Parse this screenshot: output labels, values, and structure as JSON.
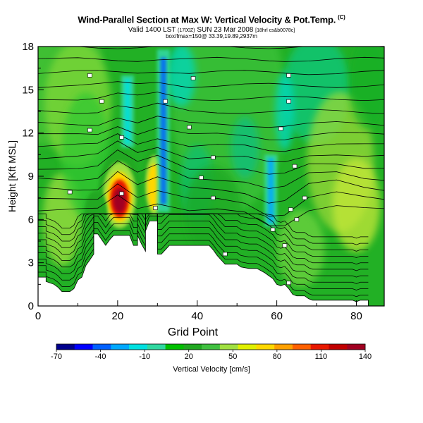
{
  "titles": {
    "main": "Wind-Parallel Section at Max W: Vertical Velocity & Pot.Temp.",
    "copyright": "(C)",
    "valid_prefix": "Valid 1400 LST",
    "valid_utc": "(1700Z)",
    "valid_date": "SUN 23 Mar 2008",
    "valid_suffix": "[18hrl cs&b0078c]",
    "box_info": "box/fmax=150@ 33.39,19.89,2937m"
  },
  "chart_data": {
    "type": "heatmap",
    "title": "Wind-Parallel Section at Max W: Vertical Velocity & Pot.Temp.",
    "xlabel": "Grid Point",
    "ylabel": "Height [Kft MSL]",
    "xlim": [
      0,
      87
    ],
    "ylim": [
      0,
      18
    ],
    "x_ticks": [
      "0",
      "20",
      "40",
      "60",
      "80"
    ],
    "y_ticks": [
      "0",
      "3",
      "6",
      "9",
      "12",
      "15",
      "18"
    ],
    "grid": false,
    "colorbar": {
      "label": "Vertical Velocity [cm/s]",
      "position": "bottom",
      "tick_labels": [
        "-70",
        "-40",
        "-10",
        "20",
        "50",
        "80",
        "110",
        "140"
      ],
      "min": -70,
      "max": 140,
      "colors": [
        "#00008c",
        "#0000ff",
        "#0060ff",
        "#00a8ff",
        "#00e0e0",
        "#30d8a0",
        "#00c000",
        "#20a820",
        "#40c040",
        "#a0e040",
        "#e0f000",
        "#ffd800",
        "#ffa000",
        "#ff6000",
        "#e81800",
        "#c00000",
        "#a00020"
      ]
    },
    "terrain": [
      [
        0,
        2
      ],
      [
        2,
        2
      ],
      [
        2,
        1.7
      ],
      [
        4,
        1.5
      ],
      [
        5,
        1.3
      ],
      [
        6,
        1
      ],
      [
        8,
        1
      ],
      [
        9,
        1.2
      ],
      [
        10,
        1.8
      ],
      [
        11,
        2
      ],
      [
        11.5,
        2.4
      ],
      [
        12,
        2.8
      ],
      [
        13,
        3.2
      ],
      [
        14,
        3.6
      ],
      [
        14,
        5
      ],
      [
        15,
        5
      ],
      [
        16,
        4.6
      ],
      [
        17,
        4.2
      ],
      [
        18,
        4.6
      ],
      [
        19,
        4.9
      ],
      [
        23,
        4.9
      ],
      [
        24,
        4.2
      ],
      [
        25,
        4.2
      ],
      [
        25,
        4.9
      ],
      [
        26,
        4.3
      ],
      [
        27,
        3.8
      ],
      [
        27,
        5.2
      ],
      [
        28,
        5.9
      ],
      [
        30,
        5.9
      ],
      [
        30,
        3.6
      ],
      [
        31,
        3.6
      ],
      [
        32,
        3.9
      ],
      [
        33,
        4.2
      ],
      [
        43,
        4.2
      ],
      [
        44,
        3.9
      ],
      [
        45,
        3.5
      ],
      [
        46,
        3.2
      ],
      [
        47,
        2.9
      ],
      [
        50,
        2.9
      ],
      [
        51,
        2.7
      ],
      [
        53,
        2.6
      ],
      [
        55,
        2.6
      ],
      [
        57,
        2.3
      ],
      [
        59,
        1.9
      ],
      [
        60,
        1.5
      ],
      [
        61,
        1.4
      ],
      [
        62,
        1.5
      ],
      [
        63,
        1.2
      ],
      [
        64,
        0.8
      ],
      [
        65,
        0.7
      ],
      [
        67,
        0.7
      ],
      [
        68,
        0.5
      ],
      [
        69,
        0.4
      ],
      [
        74,
        0.4
      ],
      [
        75,
        0.4
      ],
      [
        79,
        0.4
      ],
      [
        80,
        0.3
      ],
      [
        81,
        0.4
      ],
      [
        83,
        0.4
      ]
    ],
    "updrafts": [
      {
        "x": 20.5,
        "base": 4.9,
        "top": 10.8,
        "peak_w": 140
      },
      {
        "x": 29.2,
        "base": 5.9,
        "top": 11.2,
        "peak_w": 100
      },
      {
        "x": 14.5,
        "base": 5.0,
        "top": 8.0,
        "peak_w": 40
      }
    ],
    "downdrafts": [
      {
        "x": 31.5,
        "base": 6.5,
        "top": 17.8,
        "peak_w": -40
      },
      {
        "x": 58.5,
        "base": 5.5,
        "top": 10.5,
        "peak_w": -35
      },
      {
        "x": 22.5,
        "base": 11.0,
        "top": 16.0,
        "peak_w": -20
      }
    ]
  }
}
